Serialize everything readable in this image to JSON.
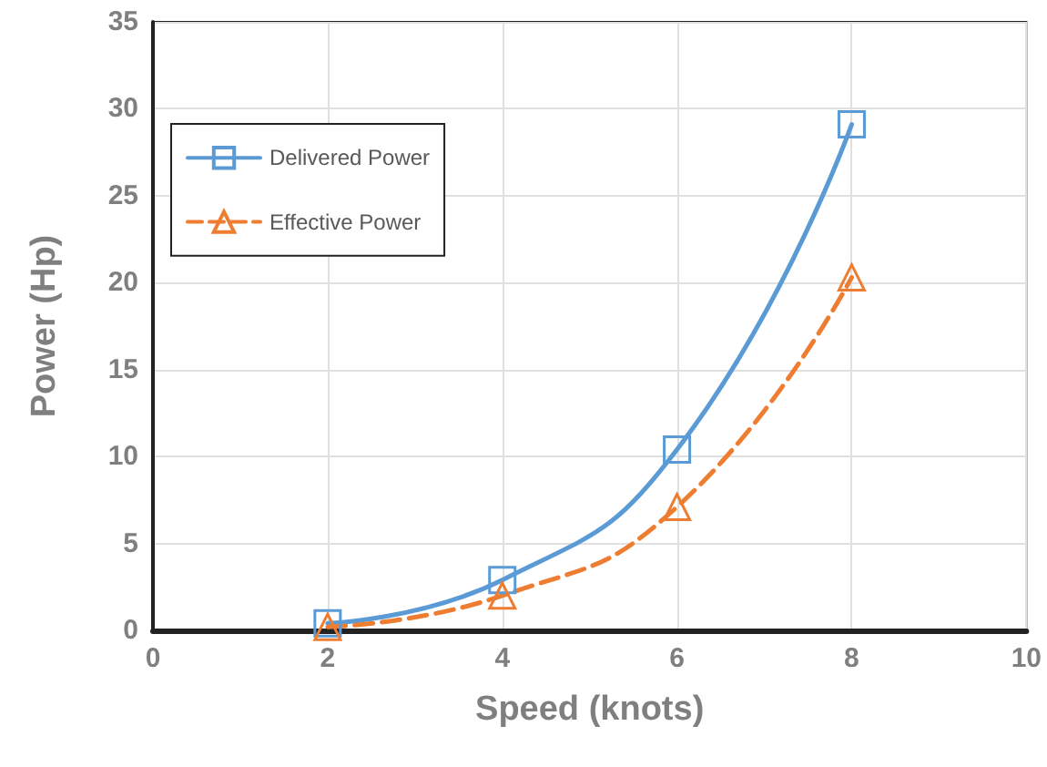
{
  "chart_data": {
    "type": "line",
    "xlabel": "Speed (knots)",
    "ylabel": "Power (Hp)",
    "x": [
      2,
      4,
      6,
      8
    ],
    "series": [
      {
        "name": "Delivered Power",
        "color": "#5b9bd5",
        "values": [
          0.4,
          2.9,
          10.4,
          29.1
        ],
        "marker": "square",
        "line_style": "solid"
      },
      {
        "name": "Effective Power",
        "color": "#ed7d31",
        "values": [
          0.2,
          2.0,
          7.1,
          20.3
        ],
        "marker": "triangle",
        "line_style": "dashed"
      }
    ],
    "xlim": [
      0,
      10
    ],
    "xticks": [
      0,
      2,
      4,
      6,
      8,
      10
    ],
    "ylim": [
      0,
      35
    ],
    "yticks": [
      0,
      5,
      10,
      15,
      20,
      25,
      30,
      35
    ],
    "grid": true,
    "legend": "top left"
  }
}
